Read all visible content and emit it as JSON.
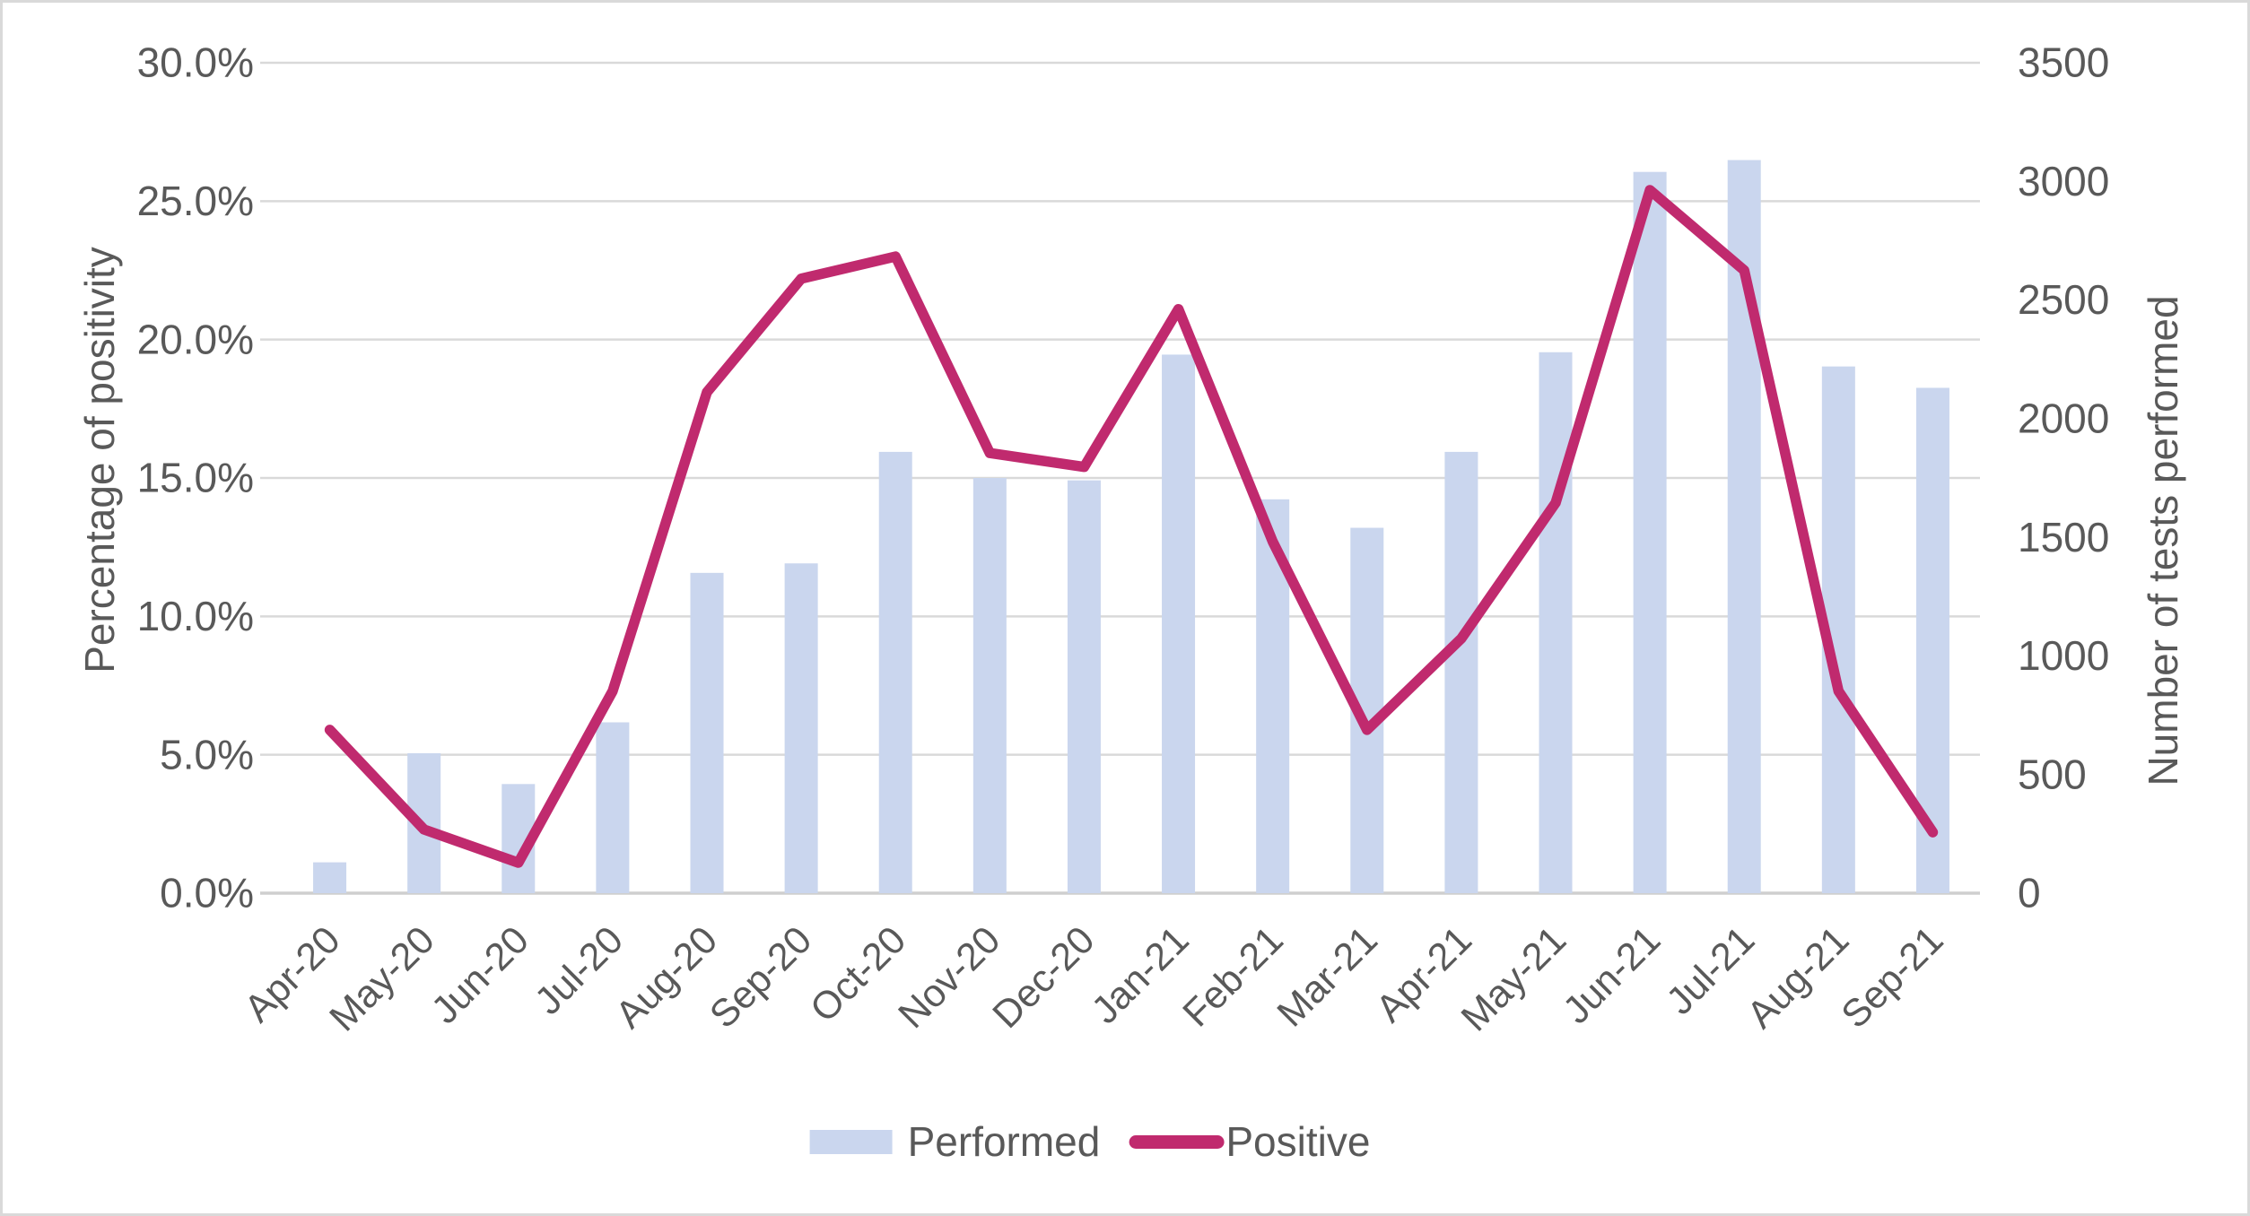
{
  "chart_data": {
    "type": "combo",
    "subtype": "bar-and-line-dual-axis",
    "categories": [
      "Apr-20",
      "May-20",
      "Jun-20",
      "Jul-20",
      "Aug-20",
      "Sep-20",
      "Oct-20",
      "Nov-20",
      "Dec-20",
      "Jan-21",
      "Feb-21",
      "Mar-21",
      "Apr-21",
      "May-21",
      "Jun-21",
      "Jul-21",
      "Aug-21",
      "Sep-21"
    ],
    "series": [
      {
        "name": "Performed",
        "type": "bar",
        "axis": "right",
        "color": "#cad6ee",
        "values": [
          130,
          590,
          460,
          720,
          1350,
          1390,
          1860,
          1750,
          1740,
          2270,
          1660,
          1540,
          1860,
          2280,
          3040,
          3090,
          2220,
          2130
        ]
      },
      {
        "name": "Positive",
        "type": "line",
        "axis": "left",
        "color": "#c02a6e",
        "values": [
          5.9,
          2.3,
          1.1,
          7.3,
          18.1,
          22.2,
          23.0,
          15.9,
          15.4,
          21.1,
          12.7,
          5.9,
          9.2,
          14.1,
          25.4,
          22.5,
          7.3,
          2.2
        ]
      }
    ],
    "left_axis": {
      "title": "Percentage of positivity",
      "min": 0,
      "max": 30,
      "step": 5,
      "tick_labels": [
        "0.0%",
        "5.0%",
        "10.0%",
        "15.0%",
        "20.0%",
        "25.0%",
        "30.0%"
      ]
    },
    "right_axis": {
      "title": "Number of tests performed",
      "min": 0,
      "max": 3500,
      "step": 500,
      "tick_labels": [
        "0",
        "500",
        "1000",
        "1500",
        "2000",
        "2500",
        "3000",
        "3500"
      ]
    },
    "legend": {
      "position": "bottom",
      "entries": [
        {
          "label": "Performed",
          "swatch": "bar",
          "color": "#cad6ee"
        },
        {
          "label": "Positive",
          "swatch": "line",
          "color": "#c02a6e"
        }
      ]
    },
    "grid": {
      "show": true,
      "color": "#d9d9d9",
      "baseline_color": "#cfcfcf"
    },
    "text_color": "#595959"
  }
}
